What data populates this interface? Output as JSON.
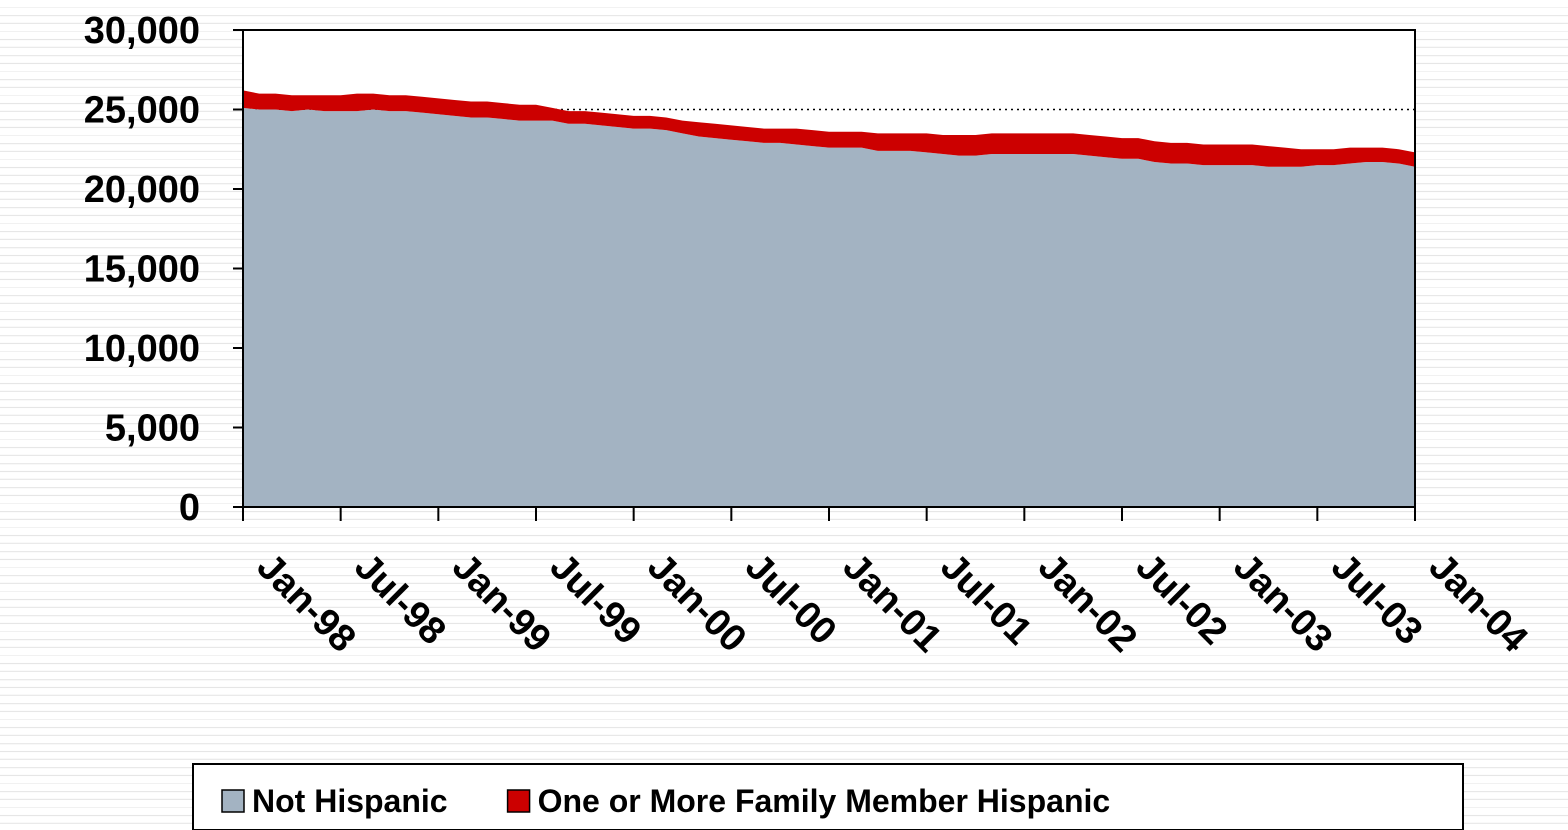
{
  "chart_data": {
    "type": "stacked_area",
    "categories": [
      "Jan-98",
      null,
      null,
      null,
      null,
      null,
      "Jul-98",
      null,
      null,
      null,
      null,
      null,
      "Jan-99",
      null,
      null,
      null,
      null,
      null,
      "Jul-99",
      null,
      null,
      null,
      null,
      null,
      "Jan-00",
      null,
      null,
      null,
      null,
      null,
      "Jul-00",
      null,
      null,
      null,
      null,
      null,
      "Jan-01",
      null,
      null,
      null,
      null,
      null,
      "Jul-01",
      null,
      null,
      null,
      null,
      null,
      "Jan-02",
      null,
      null,
      null,
      null,
      null,
      "Jul-02",
      null,
      null,
      null,
      null,
      null,
      "Jan-03",
      null,
      null,
      null,
      null,
      null,
      "Jul-03",
      null,
      null,
      null,
      null,
      null,
      "Jan-04"
    ],
    "series": [
      {
        "name": "Not Hispanic",
        "color": "#a3b3c2",
        "values": [
          25100,
          25000,
          25000,
          24900,
          25000,
          24900,
          24900,
          24900,
          25000,
          24900,
          24900,
          24800,
          24700,
          24600,
          24500,
          24500,
          24400,
          24300,
          24300,
          24300,
          24100,
          24100,
          24000,
          23900,
          23800,
          23800,
          23700,
          23500,
          23300,
          23200,
          23100,
          23000,
          22900,
          22900,
          22800,
          22700,
          22600,
          22600,
          22600,
          22400,
          22400,
          22400,
          22300,
          22200,
          22100,
          22100,
          22200,
          22200,
          22200,
          22200,
          22200,
          22200,
          22100,
          22000,
          21900,
          21900,
          21700,
          21600,
          21600,
          21500,
          21500,
          21500,
          21500,
          21400,
          21400,
          21400,
          21500,
          21500,
          21600,
          21700,
          21700,
          21600,
          21400
        ]
      },
      {
        "name": "One or More Family Member Hispanic",
        "color": "#cc0000",
        "values": [
          1100,
          1000,
          1000,
          1000,
          900,
          1000,
          1000,
          1100,
          1000,
          1000,
          1000,
          1000,
          1000,
          1000,
          1000,
          1000,
          1000,
          1000,
          1000,
          800,
          800,
          800,
          800,
          800,
          800,
          800,
          800,
          800,
          900,
          900,
          900,
          900,
          900,
          900,
          1000,
          1000,
          1000,
          1000,
          1000,
          1100,
          1100,
          1100,
          1200,
          1200,
          1300,
          1300,
          1300,
          1300,
          1300,
          1300,
          1300,
          1300,
          1300,
          1300,
          1300,
          1300,
          1300,
          1300,
          1300,
          1300,
          1300,
          1300,
          1300,
          1300,
          1200,
          1100,
          1000,
          1000,
          1000,
          900,
          900,
          900,
          900
        ]
      }
    ],
    "ylim": [
      0,
      30000
    ],
    "yticks": [
      {
        "value": 0,
        "label": "0"
      },
      {
        "value": 5000,
        "label": "5,000"
      },
      {
        "value": 10000,
        "label": "10,000"
      },
      {
        "value": 15000,
        "label": "15,000"
      },
      {
        "value": 20000,
        "label": "20,000"
      },
      {
        "value": 25000,
        "label": "25,000"
      },
      {
        "value": 30000,
        "label": "30,000"
      }
    ],
    "grid": true,
    "legend": "bottom"
  }
}
